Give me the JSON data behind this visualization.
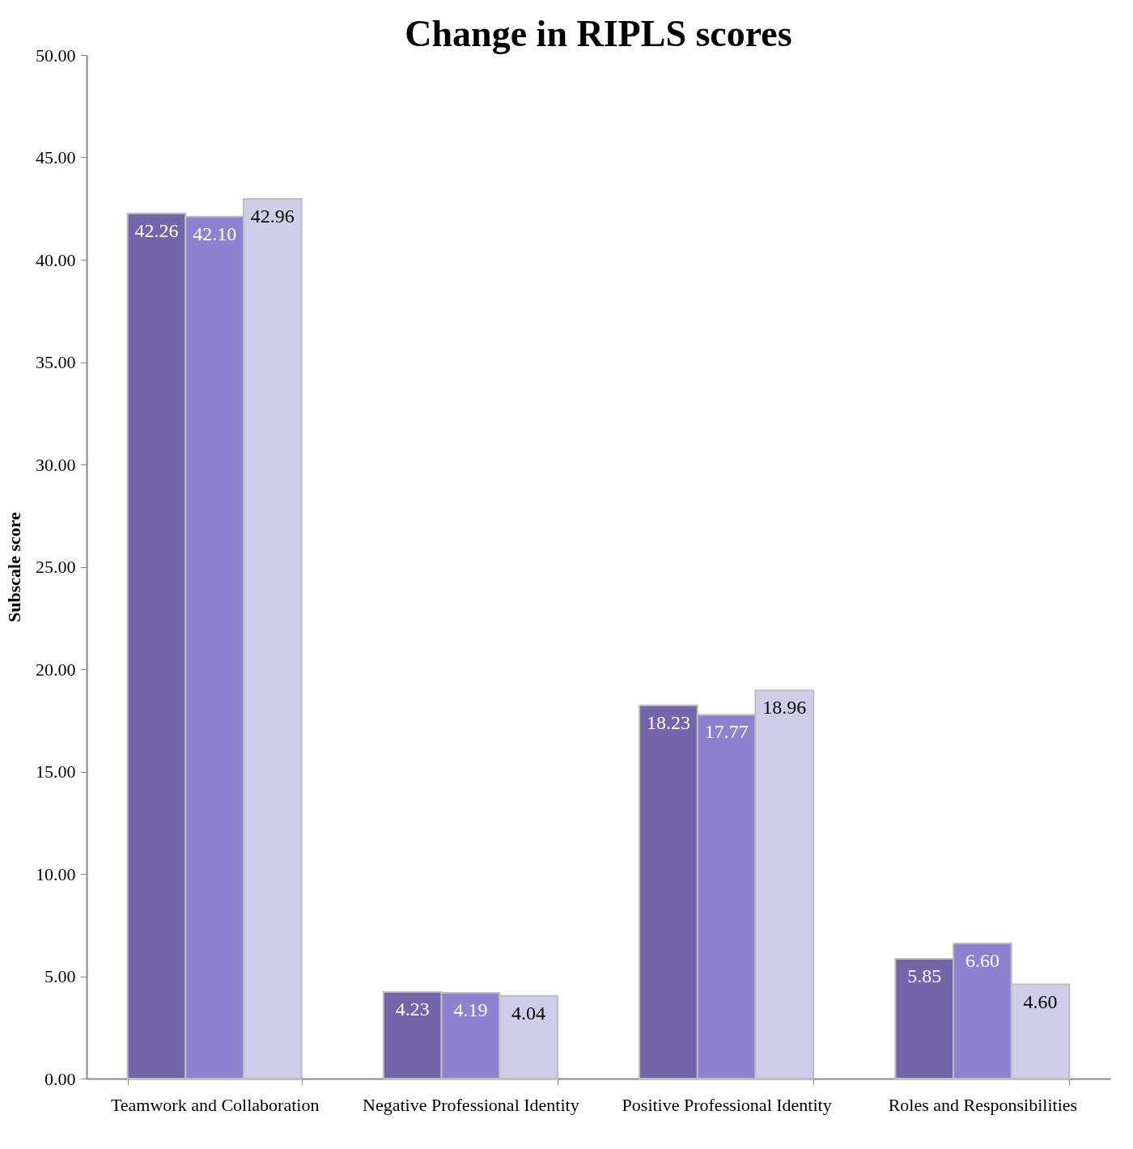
{
  "chart_data": {
    "type": "bar",
    "title": "Change in RIPLS scores",
    "ylabel": "Subscale score",
    "categories": [
      "Teamwork and Collaboration",
      "Negative Professional Identity",
      "Positive Professional Identity",
      "Roles and Responsibilities"
    ],
    "series": [
      {
        "color": "#7265aa",
        "values": [
          42.26,
          4.23,
          18.23,
          5.85
        ],
        "value_labels": [
          "42.26",
          "4.23",
          "18.23",
          "5.85"
        ]
      },
      {
        "color": "#8e82d0",
        "values": [
          42.1,
          4.19,
          17.77,
          6.6
        ],
        "value_labels": [
          "42.10",
          "4.19",
          "17.77",
          "6.60"
        ]
      },
      {
        "color": "#d0cde9",
        "values": [
          42.96,
          4.04,
          18.96,
          4.6
        ],
        "value_labels": [
          "42.96",
          "4.04",
          "18.96",
          "4.60"
        ]
      }
    ],
    "ylim": [
      0,
      50
    ],
    "yticks": [
      {
        "value": 0,
        "label": "0.00"
      },
      {
        "value": 5,
        "label": "5.00"
      },
      {
        "value": 10,
        "label": "10.00"
      },
      {
        "value": 15,
        "label": "15.00"
      },
      {
        "value": 20,
        "label": "20.00"
      },
      {
        "value": 25,
        "label": "25.00"
      },
      {
        "value": 30,
        "label": "30.00"
      },
      {
        "value": 35,
        "label": "35.00"
      },
      {
        "value": 40,
        "label": "40.00"
      },
      {
        "value": 45,
        "label": "45.00"
      },
      {
        "value": 50,
        "label": "50.00"
      }
    ],
    "grid": false
  }
}
